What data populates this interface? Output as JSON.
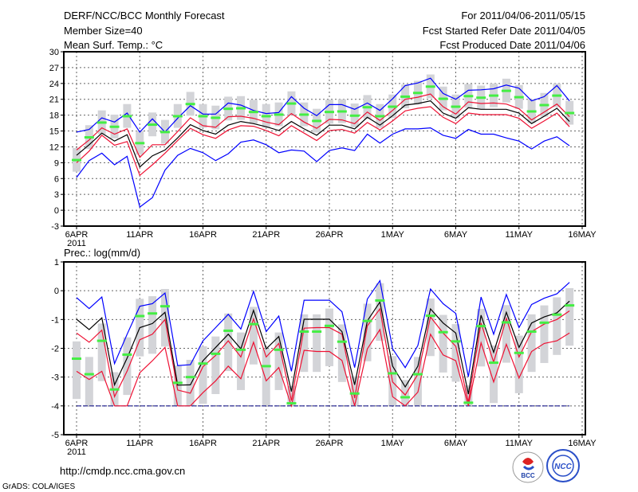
{
  "header": {
    "title": "DERF/NCC/BCC Monthly Forecast",
    "member_size": "Member Size=40",
    "variable": "Mean Surf. Temp.: °C",
    "period": "For 2011/04/06-2011/05/15",
    "started": "Fcst Started Refer Date 2011/04/05",
    "produced": "Fcst Produced Date 2011/04/06"
  },
  "footer": {
    "url": "http://cmdp.ncc.cma.gov.cn",
    "credit": "GrADS: COLA/IGES",
    "logo_left": "BCC",
    "logo_right": "NCC"
  },
  "colors": {
    "max_min": "#0000ff",
    "spread": "#ee1133",
    "mean": "#000000",
    "obs": "#44ee44",
    "box": "#d3d4d8",
    "floor": "#000080"
  },
  "chart_data": [
    {
      "type": "line",
      "title": "Mean Surf. Temp.: °C",
      "ylim": [
        -3,
        30
      ],
      "yticks": [
        "30",
        "27",
        "24",
        "21",
        "18",
        "15",
        "12",
        "9",
        "6",
        "3",
        "0",
        "-3"
      ],
      "ytick_values": [
        30,
        27,
        24,
        21,
        18,
        15,
        12,
        9,
        6,
        3,
        0,
        -3
      ],
      "xticks": [
        "6APR",
        "11APR",
        "16APR",
        "21APR",
        "26APR",
        "1MAY",
        "6MAY",
        "11MAY",
        "16MAY"
      ],
      "xtick_days": [
        0,
        5,
        10,
        15,
        20,
        25,
        30,
        35,
        40
      ],
      "year_label": "2011",
      "grid": true,
      "series": [
        {
          "name": "max",
          "color": "#0000ff",
          "values": [
            14.8,
            15.3,
            17.5,
            16.7,
            18.4,
            14.8,
            17.3,
            14.8,
            17.4,
            19.8,
            18.2,
            18.2,
            20.3,
            19.9,
            18.9,
            18.3,
            18.5,
            21.5,
            19.3,
            17.9,
            20.0,
            20.0,
            19.1,
            20.3,
            18.9,
            21.1,
            23.6,
            24.1,
            25.0,
            22.1,
            21.0,
            22.7,
            22.8,
            23.0,
            23.7,
            23.1,
            20.7,
            21.5,
            23.6,
            20.7
          ]
        },
        {
          "name": "upper",
          "color": "#ee1133",
          "values": [
            11.4,
            13.3,
            15.6,
            14.4,
            15.4,
            10.0,
            12.4,
            12.4,
            14.9,
            17.5,
            16.0,
            15.7,
            17.7,
            17.8,
            17.4,
            16.7,
            16.2,
            18.3,
            16.7,
            15.5,
            17.2,
            17.1,
            16.4,
            18.6,
            17.0,
            18.9,
            21.0,
            21.4,
            22.0,
            19.6,
            18.2,
            20.5,
            20.2,
            20.3,
            20.1,
            19.2,
            17.1,
            18.6,
            20.1,
            17.7
          ]
        },
        {
          "name": "mean",
          "color": "#000000",
          "values": [
            10.4,
            12.4,
            14.6,
            13.1,
            14.3,
            8.2,
            10.3,
            11.4,
            13.7,
            16.2,
            15.1,
            14.4,
            16.1,
            16.8,
            16.4,
            15.8,
            15.1,
            16.8,
            15.4,
            14.2,
            16.1,
            16.1,
            15.4,
            17.6,
            16.1,
            17.9,
            19.9,
            20.2,
            20.7,
            18.4,
            17.4,
            19.4,
            19.1,
            19.1,
            19.1,
            18.4,
            16.4,
            17.8,
            19.3,
            16.8
          ]
        },
        {
          "name": "lower",
          "color": "#ee1133",
          "values": [
            9.0,
            11.2,
            14.2,
            12.3,
            13.0,
            6.6,
            8.6,
            10.8,
            13.2,
            15.5,
            14.3,
            13.6,
            15.2,
            16.0,
            15.9,
            15.1,
            14.1,
            16.0,
            14.6,
            13.2,
            15.1,
            15.3,
            14.6,
            16.6,
            15.2,
            16.9,
            18.8,
            19.3,
            19.6,
            17.6,
            16.4,
            18.4,
            18.1,
            18.1,
            18.1,
            17.4,
            15.5,
            16.9,
            18.4,
            15.8
          ]
        },
        {
          "name": "min",
          "color": "#0000ff",
          "values": [
            6.2,
            9.4,
            10.8,
            8.6,
            10.2,
            0.6,
            2.4,
            7.6,
            10.4,
            11.7,
            10.9,
            9.4,
            10.7,
            12.9,
            13.3,
            12.4,
            10.9,
            11.4,
            11.2,
            9.2,
            11.3,
            11.8,
            11.3,
            14.4,
            12.7,
            14.4,
            15.4,
            15.4,
            15.6,
            14.2,
            13.6,
            15.3,
            14.4,
            14.4,
            13.7,
            13.1,
            11.6,
            13.1,
            13.9,
            12.2
          ]
        }
      ],
      "obs": [
        9.5,
        13.8,
        16.6,
        15.8,
        17.8,
        12.7,
        16.2,
        14.8,
        17.8,
        20.1,
        17.8,
        17.5,
        19.2,
        19.3,
        18.6,
        17.8,
        18.1,
        20.2,
        18.1,
        16.9,
        18.6,
        18.7,
        17.9,
        19.5,
        17.8,
        19.6,
        21.5,
        22.2,
        23.4,
        21.1,
        19.6,
        21.6,
        21.3,
        21.7,
        22.6,
        21.4,
        18.7,
        19.9,
        21.7,
        18.4
      ],
      "box_low": [
        7.3,
        11.6,
        14.4,
        13.6,
        15.6,
        10.5,
        14.0,
        12.6,
        15.6,
        17.9,
        15.6,
        15.3,
        17.0,
        17.1,
        16.4,
        15.6,
        15.9,
        18.0,
        15.9,
        14.7,
        16.4,
        16.5,
        15.7,
        17.3,
        15.6,
        17.4,
        19.3,
        20.0,
        21.2,
        18.9,
        17.4,
        19.4,
        19.1,
        19.5,
        20.4,
        19.2,
        16.5,
        17.7,
        19.5,
        16.2
      ],
      "box_high": [
        11.8,
        16.1,
        18.9,
        18.1,
        20.1,
        15.0,
        18.5,
        17.1,
        20.1,
        22.4,
        20.1,
        19.8,
        21.5,
        21.6,
        20.9,
        20.1,
        20.4,
        22.5,
        20.4,
        19.2,
        20.9,
        21.0,
        20.2,
        21.8,
        20.1,
        21.9,
        23.8,
        24.5,
        25.7,
        23.4,
        21.9,
        23.9,
        23.6,
        24.0,
        24.9,
        23.7,
        21.0,
        22.2,
        24.0,
        20.7
      ]
    },
    {
      "type": "line",
      "title": "Prec.: log(mm/d)",
      "ylim": [
        -5,
        1
      ],
      "yticks": [
        "1",
        "0",
        "-1",
        "-2",
        "-3",
        "-4",
        "-5"
      ],
      "ytick_values": [
        1,
        0,
        -1,
        -2,
        -3,
        -4,
        -5
      ],
      "xticks": [
        "6APR",
        "11APR",
        "16APR",
        "21APR",
        "26APR",
        "1MAY",
        "6MAY",
        "11MAY",
        "16MAY"
      ],
      "xtick_days": [
        0,
        5,
        10,
        15,
        20,
        25,
        30,
        35,
        40
      ],
      "year_label": "2011",
      "grid": true,
      "floor": -4,
      "series": [
        {
          "name": "max",
          "color": "#0000ff",
          "values": [
            -0.24,
            -0.62,
            -0.22,
            -2.53,
            -1.51,
            -0.54,
            -0.45,
            -0.08,
            -2.6,
            -2.57,
            -1.74,
            -1.28,
            -0.82,
            -1.33,
            -0.02,
            -1.42,
            -0.88,
            -2.8,
            -0.33,
            -0.33,
            -0.33,
            -0.73,
            -2.67,
            -0.29,
            0.35,
            -2.02,
            -2.67,
            -1.9,
            0.06,
            -0.45,
            -0.79,
            -2.99,
            -0.22,
            -1.51,
            -0.13,
            -1.28,
            -0.48,
            -0.26,
            -0.11,
            0.29
          ]
        },
        {
          "name": "upper",
          "color": "#ee1133",
          "values": [
            -1.47,
            -1.79,
            -1.37,
            -3.68,
            -2.79,
            -1.7,
            -1.51,
            -1.0,
            -3.45,
            -3.56,
            -2.64,
            -2.25,
            -1.74,
            -2.3,
            -0.98,
            -2.3,
            -1.83,
            -3.82,
            -1.3,
            -1.28,
            -1.28,
            -1.51,
            -3.73,
            -1.22,
            -0.63,
            -3.17,
            -3.62,
            -2.9,
            -0.91,
            -1.47,
            -1.93,
            -3.87,
            -1.12,
            -2.48,
            -0.96,
            -2.3,
            -1.42,
            -1.16,
            -1.0,
            -0.7
          ]
        },
        {
          "name": "mean",
          "color": "#000000",
          "values": [
            -0.99,
            -1.35,
            -0.94,
            -3.27,
            -2.34,
            -1.28,
            -1.14,
            -0.75,
            -3.28,
            -3.27,
            -2.43,
            -1.97,
            -1.51,
            -2.02,
            -0.68,
            -2.02,
            -1.59,
            -3.5,
            -0.99,
            -0.99,
            -0.99,
            -1.42,
            -3.27,
            -1.05,
            -0.39,
            -2.62,
            -3.34,
            -2.62,
            -0.63,
            -1.12,
            -1.47,
            -3.59,
            -0.85,
            -2.14,
            -0.75,
            -1.97,
            -1.12,
            -0.91,
            -0.77,
            -0.36
          ]
        },
        {
          "name": "lower",
          "color": "#ee1133",
          "values": [
            -2.8,
            -3.08,
            -2.8,
            -4,
            -4,
            -2.85,
            -2.43,
            -1.97,
            -4,
            -4,
            -3.54,
            -3.13,
            -2.62,
            -3.06,
            -1.79,
            -3.13,
            -2.67,
            -4,
            -2.07,
            -2.11,
            -2.11,
            -2.42,
            -4,
            -2.02,
            -1.35,
            -3.68,
            -4,
            -3.52,
            -1.51,
            -2.23,
            -2.43,
            -4,
            -1.81,
            -3.17,
            -1.86,
            -3.03,
            -2.11,
            -1.83,
            -1.74,
            -1.47
          ]
        }
      ],
      "obs": [
        -2.36,
        -2.9,
        -1.74,
        -3.43,
        -2.22,
        -0.88,
        -0.79,
        -0.54,
        -3.2,
        -3.0,
        -2.53,
        -2.19,
        -1.39,
        -2.05,
        -1.16,
        -2.62,
        -2.05,
        -3.91,
        -1.42,
        -1.42,
        -1.22,
        -1.77,
        -3.57,
        -1.05,
        -0.34,
        -2.87,
        -3.7,
        -2.9,
        -0.87,
        -1.44,
        -1.76,
        -3.89,
        -1.23,
        -2.5,
        -1.1,
        -2.16,
        -1.42,
        -1.11,
        -0.83,
        -0.51
      ],
      "box_low": [
        -3.76,
        -4,
        -3.14,
        -4,
        -3.62,
        -2.28,
        -2.19,
        -1.94,
        -4,
        -4,
        -3.93,
        -3.59,
        -2.79,
        -3.45,
        -2.56,
        -4,
        -3.45,
        -4,
        -2.82,
        -2.82,
        -2.62,
        -3.17,
        -4,
        -2.45,
        -1.74,
        -4,
        -4,
        -4,
        -2.27,
        -2.84,
        -3.16,
        -4,
        -2.63,
        -3.9,
        -2.5,
        -3.56,
        -2.82,
        -2.51,
        -2.23,
        -1.91
      ],
      "box_high": [
        -1.76,
        -2.3,
        -1.14,
        -2.83,
        -1.62,
        -0.28,
        -0.19,
        0.06,
        -2.6,
        -2.4,
        -1.93,
        -1.59,
        -0.79,
        -1.45,
        -0.56,
        -2.02,
        -1.45,
        -3.31,
        -0.82,
        -0.82,
        -0.62,
        -1.17,
        -2.97,
        -0.45,
        0.26,
        -2.27,
        -3.1,
        -2.3,
        -0.27,
        -0.84,
        -1.16,
        -3.29,
        -0.63,
        -1.9,
        -0.5,
        -1.56,
        -0.82,
        -0.51,
        -0.23,
        0.09
      ]
    }
  ]
}
